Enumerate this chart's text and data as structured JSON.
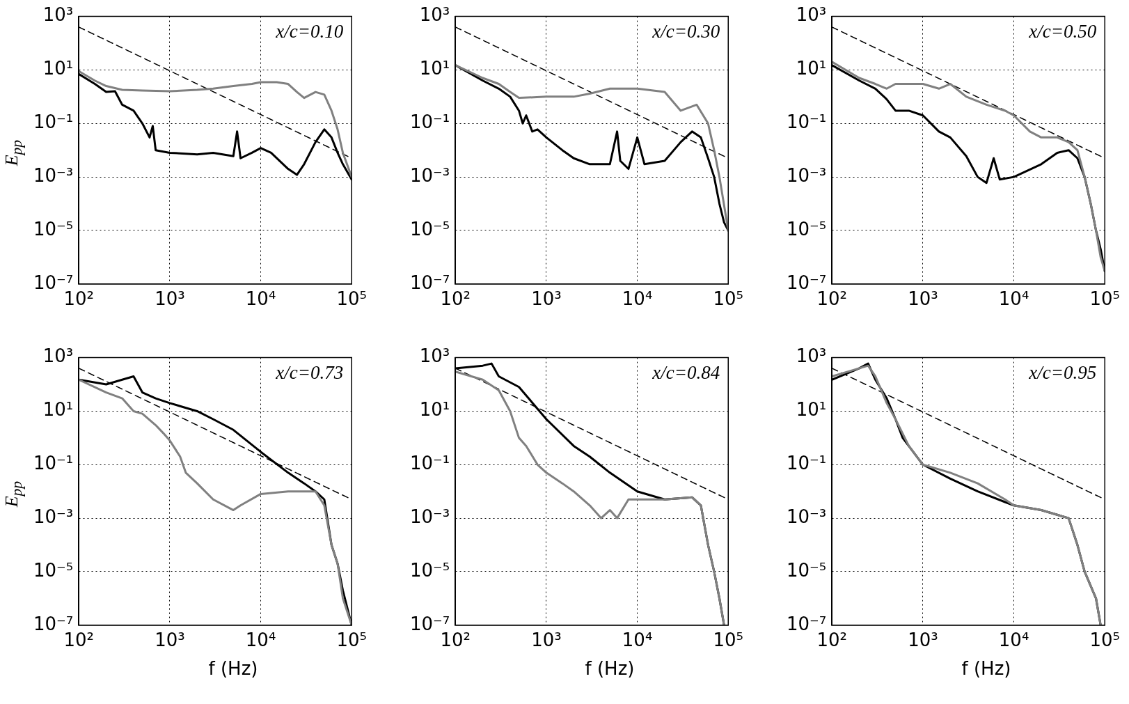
{
  "chart_data": [
    {
      "type": "line",
      "ylabel": "E$_{pp}$",
      "annotations": [
        "x/c=0.10"
      ],
      "log": "xy",
      "grid": true,
      "xlim": [
        100,
        100000
      ],
      "ylim": [
        1e-07,
        1000
      ],
      "xticks": [
        {
          "value": 100,
          "label": "10²"
        },
        {
          "value": 1000,
          "label": "10³"
        },
        {
          "value": 10000,
          "label": "10⁴"
        },
        {
          "value": 100000,
          "label": "10⁵"
        }
      ],
      "yticks": [
        {
          "value": 1e-07,
          "label": "10⁻⁷"
        },
        {
          "value": 1e-05,
          "label": "10⁻⁵"
        },
        {
          "value": 0.001,
          "label": "10⁻³"
        },
        {
          "value": 0.1,
          "label": "10⁻¹"
        },
        {
          "value": 10,
          "label": "10¹"
        },
        {
          "value": 1000,
          "label": "10³"
        }
      ],
      "series": [
        {
          "color": "#808080",
          "x": [
            100,
            150,
            200,
            300,
            500,
            1000,
            2000,
            3000,
            5000,
            8000,
            10000,
            15000,
            20000,
            25000,
            30000,
            40000,
            50000,
            60000,
            70000,
            80000,
            100000
          ],
          "values": [
            9,
            4,
            2.5,
            1.8,
            1.7,
            1.6,
            1.8,
            2,
            2.5,
            3,
            3.5,
            3.5,
            3,
            1.5,
            0.9,
            1.5,
            1.2,
            0.3,
            0.06,
            0.008,
            0.001
          ]
        },
        {
          "color": "#000000",
          "x": [
            100,
            150,
            200,
            250,
            300,
            400,
            500,
            600,
            650,
            700,
            1000,
            2000,
            3000,
            5000,
            5500,
            6000,
            8000,
            10000,
            13000,
            20000,
            25000,
            30000,
            40000,
            50000,
            60000,
            70000,
            80000,
            100000
          ],
          "values": [
            7,
            3,
            1.5,
            1.6,
            0.5,
            0.3,
            0.1,
            0.03,
            0.08,
            0.01,
            0.008,
            0.007,
            0.008,
            0.006,
            0.05,
            0.005,
            0.008,
            0.012,
            0.008,
            0.002,
            0.0012,
            0.003,
            0.02,
            0.06,
            0.03,
            0.008,
            0.003,
            0.0008
          ]
        },
        {
          "type": "line",
          "line_style": "dashed",
          "color": "#000000",
          "x": [
            100,
            100000
          ],
          "values": [
            400,
            0.005
          ]
        }
      ]
    },
    {
      "type": "line",
      "annotations": [
        "x/c=0.30"
      ],
      "log": "xy",
      "grid": true,
      "xlim": [
        100,
        100000
      ],
      "ylim": [
        1e-07,
        1000
      ],
      "xticks": [
        {
          "value": 100,
          "label": "10²"
        },
        {
          "value": 1000,
          "label": "10³"
        },
        {
          "value": 10000,
          "label": "10⁴"
        },
        {
          "value": 100000,
          "label": "10⁵"
        }
      ],
      "yticks": [
        {
          "value": 1e-07,
          "label": "10⁻⁷"
        },
        {
          "value": 1e-05,
          "label": "10⁻⁵"
        },
        {
          "value": 0.001,
          "label": "10⁻³"
        },
        {
          "value": 0.1,
          "label": "10⁻¹"
        },
        {
          "value": 10,
          "label": "10¹"
        },
        {
          "value": 1000,
          "label": "10³"
        }
      ],
      "series": [
        {
          "color": "#808080",
          "x": [
            100,
            200,
            300,
            400,
            500,
            1000,
            2000,
            3000,
            5000,
            10000,
            20000,
            30000,
            45000,
            60000,
            70000,
            80000,
            100000
          ],
          "values": [
            15,
            5,
            3,
            1.5,
            0.9,
            1,
            1,
            1.3,
            2,
            2,
            1.5,
            0.3,
            0.5,
            0.1,
            0.01,
            0.001,
            1e-05
          ]
        },
        {
          "color": "#000000",
          "x": [
            100,
            200,
            300,
            400,
            500,
            550,
            600,
            700,
            800,
            1000,
            1500,
            2000,
            3000,
            5000,
            6000,
            6500,
            8000,
            10000,
            12000,
            20000,
            30000,
            40000,
            50000,
            60000,
            70000,
            80000,
            90000,
            100000
          ],
          "values": [
            15,
            4,
            2,
            1,
            0.3,
            0.1,
            0.2,
            0.05,
            0.06,
            0.03,
            0.01,
            0.005,
            0.003,
            0.003,
            0.05,
            0.004,
            0.002,
            0.03,
            0.003,
            0.004,
            0.02,
            0.05,
            0.03,
            0.005,
            0.001,
            0.0001,
            2e-05,
            1e-05
          ]
        },
        {
          "type": "line",
          "line_style": "dashed",
          "color": "#000000",
          "x": [
            100,
            100000
          ],
          "values": [
            400,
            0.005
          ]
        }
      ]
    },
    {
      "type": "line",
      "annotations": [
        "x/c=0.50"
      ],
      "log": "xy",
      "grid": true,
      "xlim": [
        100,
        100000
      ],
      "ylim": [
        1e-07,
        1000
      ],
      "xticks": [
        {
          "value": 100,
          "label": "10²"
        },
        {
          "value": 1000,
          "label": "10³"
        },
        {
          "value": 10000,
          "label": "10⁴"
        },
        {
          "value": 100000,
          "label": "10⁵"
        }
      ],
      "yticks": [
        {
          "value": 1e-07,
          "label": "10⁻⁷"
        },
        {
          "value": 1e-05,
          "label": "10⁻⁵"
        },
        {
          "value": 0.001,
          "label": "10⁻³"
        },
        {
          "value": 0.1,
          "label": "10⁻¹"
        },
        {
          "value": 10,
          "label": "10¹"
        },
        {
          "value": 1000,
          "label": "10³"
        }
      ],
      "series": [
        {
          "color": "#808080",
          "x": [
            100,
            200,
            300,
            400,
            500,
            1000,
            1500,
            2000,
            3000,
            5000,
            8000,
            10000,
            15000,
            20000,
            30000,
            40000,
            50000,
            60000,
            70000,
            80000,
            90000,
            100000
          ],
          "values": [
            20,
            5,
            3,
            2,
            3,
            3,
            2,
            3,
            1,
            0.5,
            0.3,
            0.2,
            0.05,
            0.03,
            0.03,
            0.02,
            0.01,
            0.001,
            0.0001,
            1e-05,
            1e-06,
            3e-07
          ]
        },
        {
          "color": "#000000",
          "x": [
            100,
            200,
            300,
            400,
            500,
            700,
            1000,
            1500,
            2000,
            3000,
            4000,
            5000,
            6000,
            7000,
            10000,
            20000,
            30000,
            40000,
            50000,
            60000,
            70000,
            80000,
            90000,
            100000
          ],
          "values": [
            15,
            4,
            2,
            0.8,
            0.3,
            0.3,
            0.2,
            0.05,
            0.03,
            0.006,
            0.001,
            0.0006,
            0.005,
            0.0008,
            0.001,
            0.003,
            0.008,
            0.01,
            0.005,
            0.001,
            0.0001,
            1e-05,
            2e-06,
            3e-07
          ]
        },
        {
          "type": "line",
          "line_style": "dashed",
          "color": "#000000",
          "x": [
            100,
            100000
          ],
          "values": [
            400,
            0.005
          ]
        }
      ]
    },
    {
      "type": "line",
      "ylabel": "E$_{pp}$",
      "xlabel": "f (Hz)",
      "annotations": [
        "x/c=0.73"
      ],
      "log": "xy",
      "grid": true,
      "xlim": [
        100,
        100000
      ],
      "ylim": [
        1e-07,
        1000
      ],
      "xticks": [
        {
          "value": 100,
          "label": "10²"
        },
        {
          "value": 1000,
          "label": "10³"
        },
        {
          "value": 10000,
          "label": "10⁴"
        },
        {
          "value": 100000,
          "label": "10⁵"
        }
      ],
      "yticks": [
        {
          "value": 1e-07,
          "label": "10⁻⁷"
        },
        {
          "value": 1e-05,
          "label": "10⁻⁵"
        },
        {
          "value": 0.001,
          "label": "10⁻³"
        },
        {
          "value": 0.1,
          "label": "10⁻¹"
        },
        {
          "value": 10,
          "label": "10¹"
        },
        {
          "value": 1000,
          "label": "10³"
        }
      ],
      "series": [
        {
          "color": "#808080",
          "x": [
            100,
            200,
            300,
            400,
            500,
            700,
            850,
            1000,
            1300,
            1500,
            2000,
            3000,
            5000,
            6000,
            10000,
            20000,
            30000,
            40000,
            50000,
            60000,
            70000,
            80000,
            100000
          ],
          "values": [
            150,
            50,
            30,
            10,
            8,
            3,
            1.5,
            0.8,
            0.2,
            0.05,
            0.02,
            0.005,
            0.002,
            0.003,
            0.008,
            0.01,
            0.01,
            0.01,
            0.003,
            0.0001,
            2e-05,
            1e-06,
            1e-07
          ]
        },
        {
          "color": "#000000",
          "x": [
            100,
            200,
            300,
            400,
            500,
            700,
            1000,
            2000,
            3000,
            5000,
            10000,
            20000,
            30000,
            40000,
            50000,
            60000,
            70000,
            80000,
            100000
          ],
          "values": [
            150,
            100,
            150,
            200,
            50,
            30,
            20,
            10,
            5,
            2,
            0.3,
            0.05,
            0.02,
            0.01,
            0.005,
            0.0001,
            2e-05,
            2e-06,
            1e-07
          ]
        },
        {
          "type": "line",
          "line_style": "dashed",
          "color": "#000000",
          "x": [
            100,
            100000
          ],
          "values": [
            400,
            0.005
          ]
        }
      ]
    },
    {
      "type": "line",
      "xlabel": "f (Hz)",
      "annotations": [
        "x/c=0.84"
      ],
      "log": "xy",
      "grid": true,
      "xlim": [
        100,
        100000
      ],
      "ylim": [
        1e-07,
        1000
      ],
      "xticks": [
        {
          "value": 100,
          "label": "10²"
        },
        {
          "value": 1000,
          "label": "10³"
        },
        {
          "value": 10000,
          "label": "10⁴"
        },
        {
          "value": 100000,
          "label": "10⁵"
        }
      ],
      "yticks": [
        {
          "value": 1e-07,
          "label": "10⁻⁷"
        },
        {
          "value": 1e-05,
          "label": "10⁻⁵"
        },
        {
          "value": 0.001,
          "label": "10⁻³"
        },
        {
          "value": 0.1,
          "label": "10⁻¹"
        },
        {
          "value": 10,
          "label": "10¹"
        },
        {
          "value": 1000,
          "label": "10³"
        }
      ],
      "series": [
        {
          "color": "#808080",
          "x": [
            100,
            200,
            300,
            400,
            500,
            600,
            800,
            1000,
            1500,
            2000,
            3000,
            4000,
            5000,
            6000,
            8000,
            10000,
            20000,
            40000,
            50000,
            60000,
            70000,
            80000,
            90000
          ],
          "values": [
            300,
            150,
            60,
            10,
            1,
            0.5,
            0.1,
            0.05,
            0.02,
            0.01,
            0.003,
            0.001,
            0.002,
            0.001,
            0.005,
            0.005,
            0.005,
            0.006,
            0.003,
            0.0001,
            1e-05,
            1e-06,
            1e-07
          ]
        },
        {
          "color": "#000000",
          "x": [
            100,
            200,
            250,
            300,
            500,
            1000,
            2000,
            3000,
            5000,
            10000,
            20000,
            40000,
            50000,
            60000,
            70000,
            80000,
            90000
          ],
          "values": [
            400,
            500,
            600,
            200,
            80,
            5,
            0.5,
            0.2,
            0.05,
            0.01,
            0.005,
            0.006,
            0.003,
            0.0001,
            1e-05,
            1e-06,
            1e-07
          ]
        },
        {
          "type": "line",
          "line_style": "dashed",
          "color": "#000000",
          "x": [
            100,
            100000
          ],
          "values": [
            400,
            0.005
          ]
        }
      ]
    },
    {
      "type": "line",
      "xlabel": "f (Hz)",
      "annotations": [
        "x/c=0.95"
      ],
      "log": "xy",
      "grid": true,
      "xlim": [
        100,
        100000
      ],
      "ylim": [
        1e-07,
        1000
      ],
      "xticks": [
        {
          "value": 100,
          "label": "10²"
        },
        {
          "value": 1000,
          "label": "10³"
        },
        {
          "value": 10000,
          "label": "10⁴"
        },
        {
          "value": 100000,
          "label": "10⁵"
        }
      ],
      "yticks": [
        {
          "value": 1e-07,
          "label": "10⁻⁷"
        },
        {
          "value": 1e-05,
          "label": "10⁻⁵"
        },
        {
          "value": 0.001,
          "label": "10⁻³"
        },
        {
          "value": 0.1,
          "label": "10⁻¹"
        },
        {
          "value": 10,
          "label": "10¹"
        },
        {
          "value": 1000,
          "label": "10³"
        }
      ],
      "series": [
        {
          "color": "#808080",
          "x": [
            100,
            200,
            250,
            300,
            400,
            500,
            700,
            1000,
            2000,
            4000,
            8000,
            10000,
            20000,
            40000,
            50000,
            60000,
            80000,
            90000
          ],
          "values": [
            200,
            400,
            500,
            200,
            20,
            5,
            0.5,
            0.1,
            0.05,
            0.02,
            0.005,
            0.003,
            0.002,
            0.001,
            0.0001,
            1e-05,
            1e-06,
            1e-07
          ]
        },
        {
          "color": "#000000",
          "x": [
            100,
            200,
            250,
            300,
            400,
            500,
            600,
            1000,
            2000,
            4000,
            8000,
            10000,
            20000,
            40000,
            50000,
            60000,
            80000,
            90000
          ],
          "values": [
            150,
            400,
            600,
            150,
            30,
            5,
            1,
            0.1,
            0.03,
            0.01,
            0.004,
            0.003,
            0.002,
            0.001,
            0.0001,
            1e-05,
            1e-06,
            1e-07
          ]
        },
        {
          "type": "line",
          "line_style": "dashed",
          "color": "#000000",
          "x": [
            100,
            100000
          ],
          "values": [
            400,
            0.005
          ]
        }
      ]
    }
  ]
}
